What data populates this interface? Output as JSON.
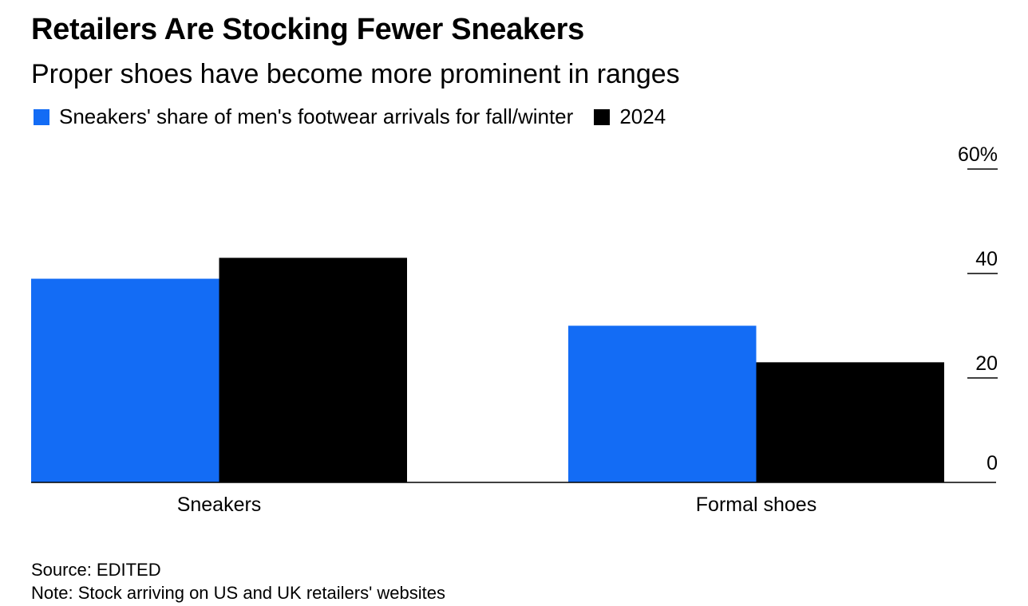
{
  "chart_data": {
    "type": "bar",
    "title": "Retailers Are Stocking Fewer Sneakers",
    "subtitle": "Proper shoes have become more prominent in ranges",
    "categories": [
      "Sneakers",
      "Formal shoes"
    ],
    "series": [
      {
        "name": "Sneakers' share of men's footwear arrivals for fall/winter",
        "color": "#136cf5",
        "values": [
          39,
          30
        ]
      },
      {
        "name": "2024",
        "color": "#000000",
        "values": [
          43,
          23
        ]
      }
    ],
    "xlabel": "",
    "ylabel": "",
    "ylim": [
      0,
      60
    ],
    "yticks": [
      0,
      20,
      40,
      60
    ],
    "ytick_labels": [
      "0",
      "20",
      "40",
      "60%"
    ],
    "y_axis_side": "right",
    "grid": false,
    "legend_position": "top-left"
  },
  "footer": {
    "source": "Source: EDITED",
    "note": "Note: Stock arriving on US and UK retailers' websites"
  }
}
